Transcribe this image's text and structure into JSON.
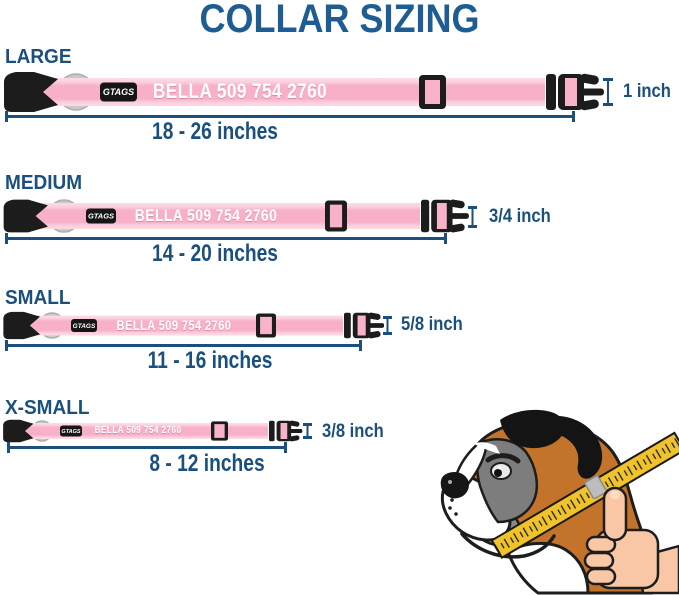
{
  "title": "COLLAR SIZING",
  "collar": {
    "brand": "GTAGS",
    "personalization": "BELLA 509 754 2760"
  },
  "sizes": [
    {
      "label": "LARGE",
      "length_range": "18 - 26 inches",
      "width": "1 inch"
    },
    {
      "label": "MEDIUM",
      "length_range": "14 - 20 inches",
      "width": "3/4 inch"
    },
    {
      "label": "SMALL",
      "length_range": "11 - 16 inches",
      "width": "5/8 inch"
    },
    {
      "label": "X-SMALL",
      "length_range": "8 - 12 inches",
      "width": "3/8 inch"
    }
  ],
  "illustration": {
    "icon": "dog-neck-measuring-tape-icon"
  },
  "colors": {
    "title_blue": "#1e5c94",
    "text_navy": "#1a4f7e",
    "collar_pink": "#f8b0c8",
    "collar_pink_light": "#fcd8e3",
    "buckle_black": "#1c1c1c",
    "ring_gray": "#c9c9c9",
    "tape_yellow": "#f0c32b",
    "dog_brown": "#c3742a",
    "hand_skin": "#f9c7a5"
  }
}
